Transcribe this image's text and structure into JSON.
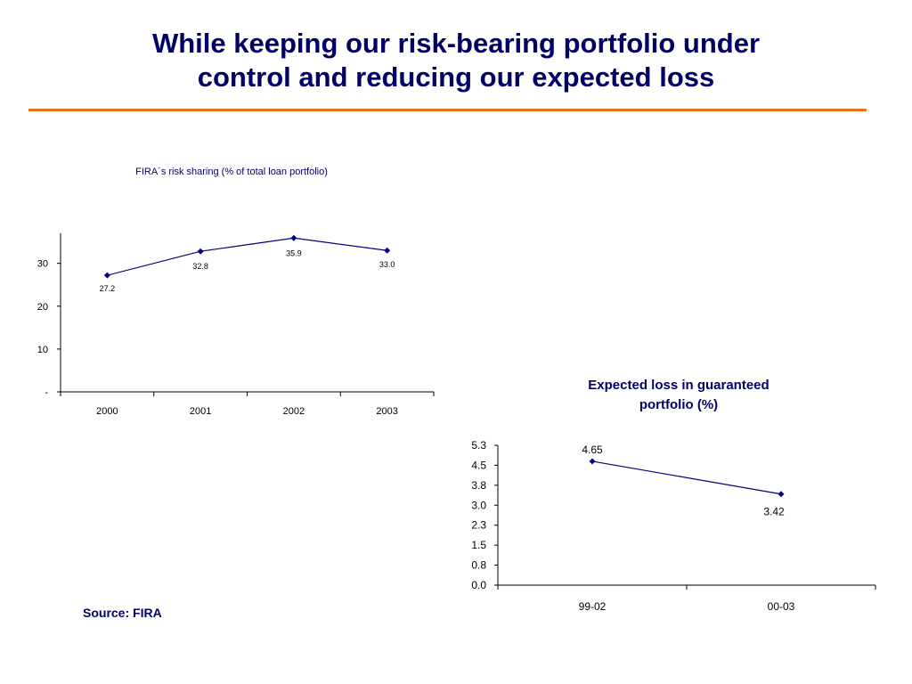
{
  "title": {
    "line1": "While keeping our risk-bearing portfolio under",
    "line2": "control and reducing our expected loss"
  },
  "colors": {
    "title": "#000066",
    "rule": "#e8731e",
    "series": "#000080"
  },
  "source": "Source: FIRA",
  "chart_data": [
    {
      "type": "line",
      "title": "FIRA´s risk sharing (% of total loan portfolio)",
      "xlabel": "",
      "ylabel": "",
      "categories": [
        "2000",
        "2001",
        "2002",
        "2003"
      ],
      "series": [
        {
          "values": [
            27.2,
            32.8,
            35.9,
            33.0
          ]
        }
      ],
      "data_labels": [
        "27.2",
        "32.8",
        "35.9",
        "33.0"
      ],
      "yticks": [
        0,
        10,
        20,
        30
      ],
      "ytick_labels": [
        "-",
        "10",
        "20",
        "30"
      ],
      "ylim": [
        0,
        37
      ],
      "grid": false,
      "legend": "none"
    },
    {
      "type": "line",
      "title_lines": [
        "Expected loss in guaranteed",
        "portfolio (%)"
      ],
      "xlabel": "",
      "ylabel": "",
      "categories": [
        "99-02",
        "00-03"
      ],
      "series": [
        {
          "values": [
            4.65,
            3.42
          ]
        }
      ],
      "data_labels": [
        "4.65",
        "3.42"
      ],
      "yticks": [
        0.0,
        0.75,
        1.5,
        2.25,
        3.0,
        3.75,
        4.5,
        5.25
      ],
      "ytick_labels": [
        "0.0",
        "0.8",
        "1.5",
        "2.3",
        "3.0",
        "3.8",
        "4.5",
        "5.3"
      ],
      "ylim": [
        0,
        5.25
      ],
      "grid": false,
      "legend": "none"
    }
  ]
}
